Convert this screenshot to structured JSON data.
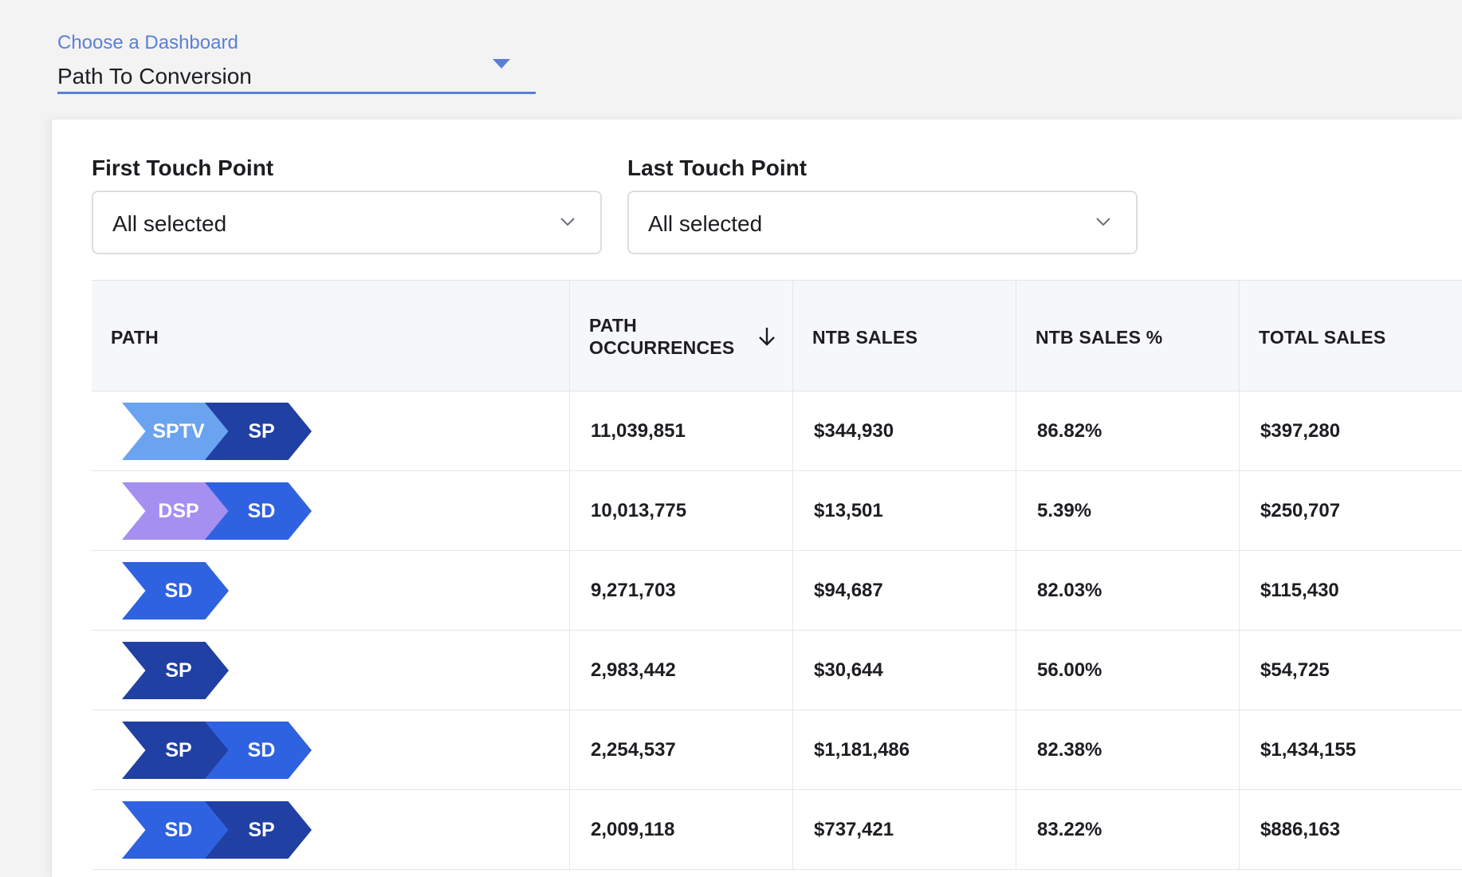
{
  "dashboard": {
    "label": "Choose a Dashboard",
    "selected": "Path To Conversion"
  },
  "filters": {
    "first": {
      "title": "First Touch Point",
      "value": "All selected"
    },
    "last": {
      "title": "Last Touch Point",
      "value": "All selected"
    }
  },
  "table": {
    "headers": [
      "PATH",
      "PATH OCCURRENCES",
      "NTB SALES",
      "NTB SALES %",
      "TOTAL SALES"
    ],
    "sort": {
      "column": "PATH OCCURRENCES",
      "direction": "descending"
    },
    "rows": [
      {
        "path": [
          "SPTV",
          "SP"
        ],
        "occurrences": "11,039,851",
        "ntb_sales": "$344,930",
        "ntb_pct": "86.82%",
        "total_sales": "$397,280"
      },
      {
        "path": [
          "DSP",
          "SD"
        ],
        "occurrences": "10,013,775",
        "ntb_sales": "$13,501",
        "ntb_pct": "5.39%",
        "total_sales": "$250,707"
      },
      {
        "path": [
          "SD"
        ],
        "occurrences": "9,271,703",
        "ntb_sales": "$94,687",
        "ntb_pct": "82.03%",
        "total_sales": "$115,430"
      },
      {
        "path": [
          "SP"
        ],
        "occurrences": "2,983,442",
        "ntb_sales": "$30,644",
        "ntb_pct": "56.00%",
        "total_sales": "$54,725"
      },
      {
        "path": [
          "SP",
          "SD"
        ],
        "occurrences": "2,254,537",
        "ntb_sales": "$1,181,486",
        "ntb_pct": "82.38%",
        "total_sales": "$1,434,155"
      },
      {
        "path": [
          "SD",
          "SP"
        ],
        "occurrences": "2,009,118",
        "ntb_sales": "$737,421",
        "ntb_pct": "83.22%",
        "total_sales": "$886,163"
      }
    ]
  },
  "colors": {
    "accent": "#5b7fd6",
    "SPTV": "#6aa3f0",
    "SP": "#2040a4",
    "DSP": "#a58ff0",
    "SD": "#2f62e0"
  },
  "icons": {
    "dropdown": "caret-down-icon",
    "filter_dropdown": "chevron-down-icon",
    "sort": "arrow-down-icon"
  }
}
